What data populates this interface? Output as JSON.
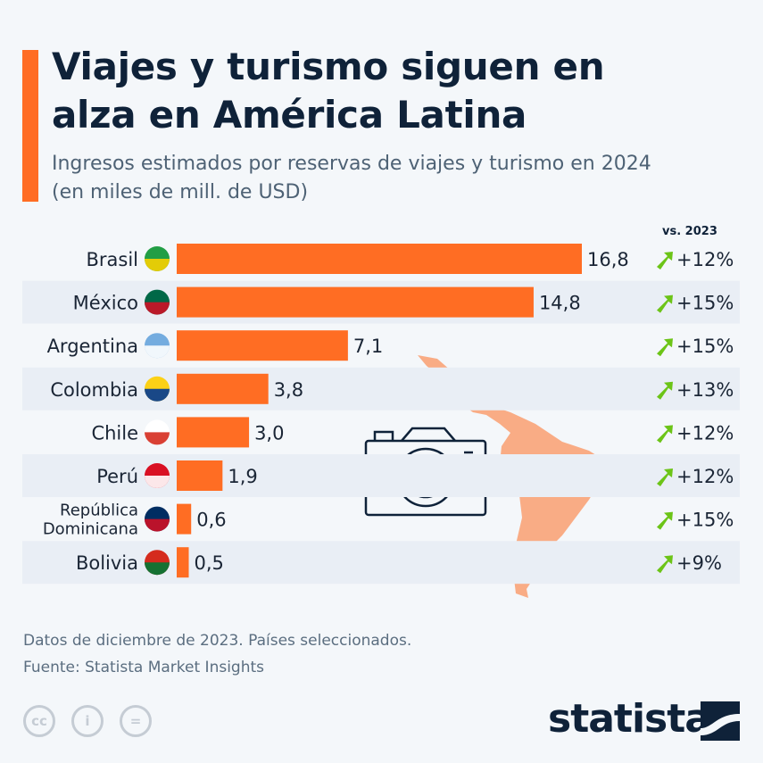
{
  "header": {
    "title_line1": "Viajes y turismo siguen en",
    "title_line2": "alza en América Latina",
    "subtitle_line1": "Ingresos estimados por reservas de viajes y turismo en 2024",
    "subtitle_line2": "(en miles de mill. de USD)"
  },
  "chart_data": {
    "type": "bar",
    "orientation": "horizontal",
    "title": "Viajes y turismo siguen en alza en América Latina",
    "subtitle": "Ingresos estimados por reservas de viajes y turismo en 2024 (en miles de mill. de USD)",
    "categories": [
      "Brasil",
      "México",
      "Argentina",
      "Colombia",
      "Chile",
      "Perú",
      "República Dominicana",
      "Bolivia"
    ],
    "values": [
      16.8,
      14.8,
      7.1,
      3.8,
      3.0,
      1.9,
      0.6,
      0.5
    ],
    "value_labels": [
      "16,8",
      "14,8",
      "7,1",
      "3,8",
      "3,0",
      "1,9",
      "0,6",
      "0,5"
    ],
    "change_header": "vs. 2023",
    "change_labels": [
      "+12%",
      "+15%",
      "+15%",
      "+13%",
      "+12%",
      "+12%",
      "+15%",
      "+9%"
    ],
    "change_icon": "arrow-up-right-icon",
    "bar_color": "#ff6d23",
    "change_color": "#6cc417",
    "grid": false
  },
  "footer": {
    "note": "Datos de diciembre de 2023. Países seleccionados.",
    "source": "Fuente: Statista Market Insights",
    "cc_icons": [
      "cc",
      "i",
      "="
    ],
    "logo": "statista"
  }
}
